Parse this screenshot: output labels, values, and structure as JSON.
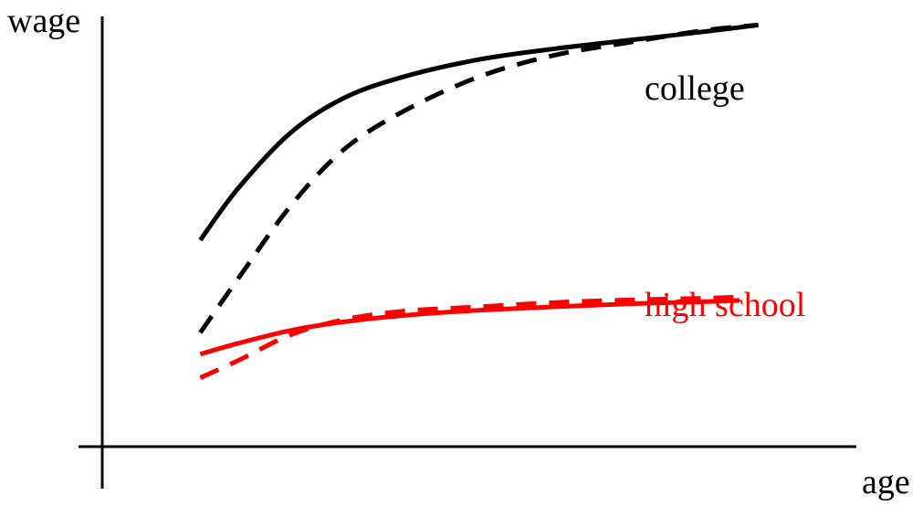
{
  "chart_data": {
    "type": "line",
    "title": "",
    "xlabel": "age",
    "ylabel": "wage",
    "grid": false,
    "legend": "none",
    "xlim": [
      0,
      100
    ],
    "ylim": [
      0,
      100
    ],
    "series": [
      {
        "name": "college",
        "style": "solid",
        "color": "#000000",
        "x": [
          13,
          18,
          25,
          32,
          40,
          50,
          60,
          70,
          80,
          87
        ],
        "y": [
          48,
          60,
          73,
          81,
          86,
          90,
          92.5,
          94.5,
          96.5,
          98
        ]
      },
      {
        "style": "dashed",
        "color": "#000000",
        "x": [
          13,
          18,
          25,
          32,
          40,
          50,
          60,
          70,
          80,
          87
        ],
        "y": [
          26.5,
          39,
          56,
          69,
          78,
          86,
          91,
          94,
          96.8,
          98
        ]
      },
      {
        "name": "high school",
        "style": "solid",
        "color": "#ff0000",
        "x": [
          13,
          18,
          25,
          32,
          40,
          50,
          60,
          70,
          80,
          84.5
        ],
        "y": [
          21.5,
          24,
          27,
          29,
          30.5,
          31.7,
          32.5,
          33.2,
          33.7,
          34
        ]
      },
      {
        "style": "dashed",
        "color": "#ff0000",
        "x": [
          13,
          18,
          25,
          32,
          40,
          50,
          60,
          70,
          80,
          84.5
        ],
        "y": [
          16,
          20,
          26,
          29.5,
          31.5,
          32.5,
          33.5,
          34.1,
          34.5,
          34.8
        ]
      }
    ]
  }
}
